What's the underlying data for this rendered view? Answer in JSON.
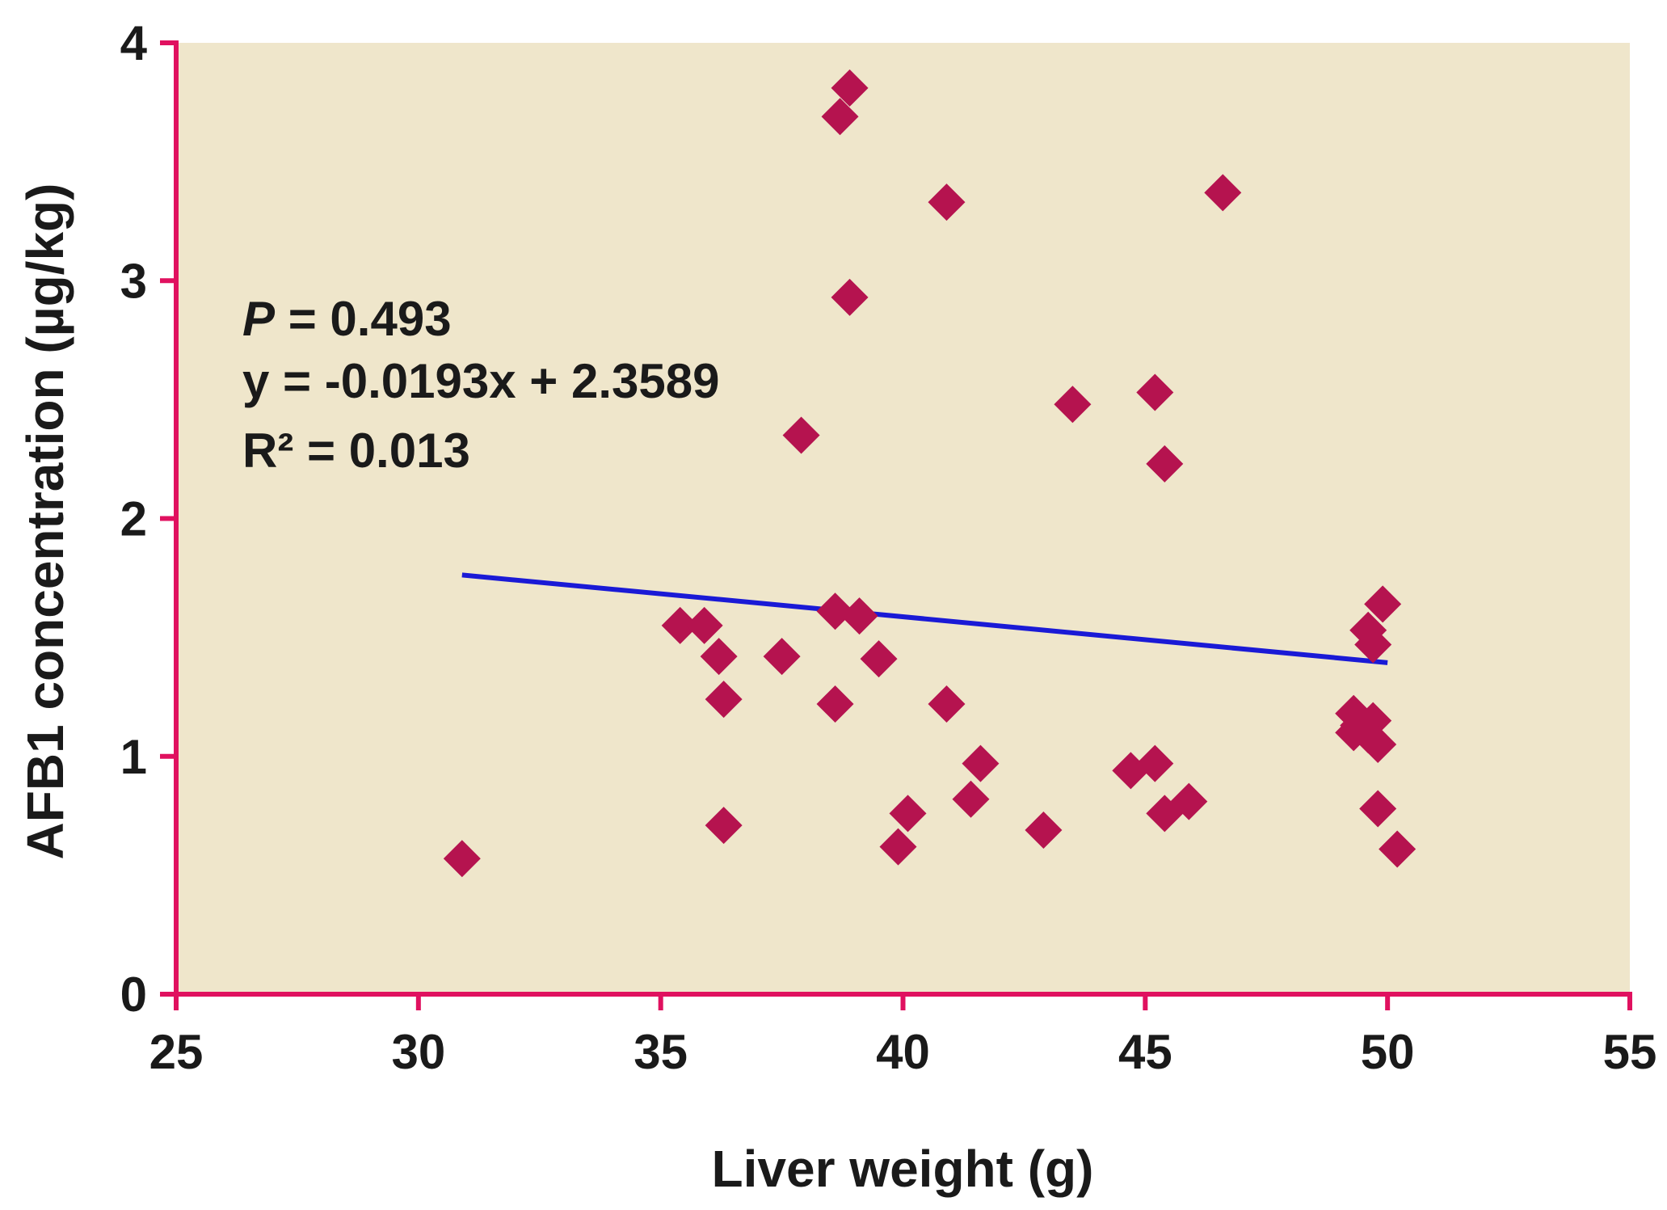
{
  "chart_data": {
    "type": "scatter",
    "title": "",
    "xlabel": "Liver weight (g)",
    "ylabel": "AFB1 concentration (µg/kg)",
    "xlim": [
      25,
      55
    ],
    "ylim": [
      0,
      4
    ],
    "xticks": [
      25,
      30,
      35,
      40,
      45,
      50,
      55
    ],
    "yticks": [
      0,
      1,
      2,
      3,
      4
    ],
    "grid": false,
    "colors": {
      "plot_background": "#efe6cb",
      "axis": "#e0115f",
      "points": "#b5134f",
      "trendline": "#1a1ad6"
    },
    "series": [
      {
        "name": "AFB1 vs liver weight",
        "marker": "diamond",
        "x": [
          30.9,
          35.4,
          35.9,
          36.2,
          36.3,
          36.3,
          37.5,
          37.9,
          38.6,
          38.6,
          38.7,
          38.9,
          38.9,
          39.1,
          39.5,
          39.9,
          40.1,
          40.9,
          40.9,
          41.4,
          41.6,
          42.9,
          43.5,
          44.7,
          45.2,
          45.2,
          45.4,
          45.4,
          45.9,
          46.6,
          49.3,
          49.3,
          49.4,
          49.6,
          49.6,
          49.7,
          49.7,
          49.8,
          49.8,
          49.9,
          50.2
        ],
        "y": [
          0.57,
          1.55,
          1.55,
          1.42,
          1.24,
          0.71,
          1.42,
          2.35,
          1.61,
          1.22,
          3.69,
          3.81,
          2.93,
          1.59,
          1.41,
          0.62,
          0.76,
          3.33,
          1.22,
          0.82,
          0.97,
          0.69,
          2.48,
          0.94,
          0.97,
          2.53,
          2.23,
          0.76,
          0.81,
          3.37,
          1.18,
          1.1,
          1.13,
          1.53,
          1.09,
          1.47,
          1.15,
          0.78,
          1.05,
          1.64,
          0.61
        ]
      }
    ],
    "trendline": {
      "slope": -0.0193,
      "intercept": 2.3589,
      "x_range": [
        30.9,
        50.0
      ]
    },
    "annotations": {
      "p_label": "P",
      "p_value": " = 0.493",
      "equation": "y = -0.0193x + 2.3589",
      "r_squared": "R² = 0.013"
    }
  }
}
